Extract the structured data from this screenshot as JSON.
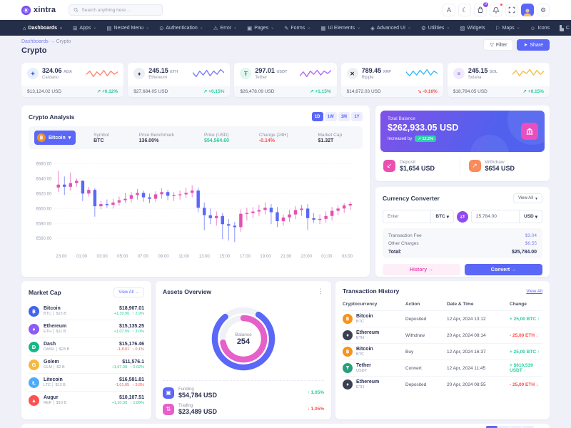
{
  "brand": {
    "name": "xintra"
  },
  "header": {
    "search_placeholder": "Search anything here ...",
    "cart_badge": "0",
    "icons": [
      "search-icon",
      "translate-icon",
      "moon-icon",
      "cart-icon",
      "bell-icon",
      "fullscreen-icon",
      "avatar",
      "gear-icon"
    ],
    "translate_glyph": "A",
    "moon_glyph": "☾",
    "gear_glyph": "⚙"
  },
  "nav": {
    "chevron": "⌄",
    "items": [
      {
        "label": "Dashboards",
        "glyph": "⌂",
        "icon": "home-icon",
        "chevron": true,
        "active": true
      },
      {
        "label": "Apps",
        "glyph": "⊞",
        "icon": "apps-grid-icon",
        "chevron": true,
        "active": false
      },
      {
        "label": "Nested Menu",
        "glyph": "▤",
        "icon": "nested-menu-icon",
        "chevron": true,
        "active": false
      },
      {
        "label": "Authentication",
        "glyph": "⊙",
        "icon": "lock-icon",
        "chevron": true,
        "active": false
      },
      {
        "label": "Error",
        "glyph": "⚠",
        "icon": "warning-icon",
        "chevron": true,
        "active": false
      },
      {
        "label": "Pages",
        "glyph": "▣",
        "icon": "pages-icon",
        "chevron": true,
        "active": false
      },
      {
        "label": "Forms",
        "glyph": "✎",
        "icon": "forms-icon",
        "chevron": true,
        "active": false
      },
      {
        "label": "Ui Elements",
        "glyph": "▦",
        "icon": "ui-elements-icon",
        "chevron": true,
        "active": false
      },
      {
        "label": "Advanced UI",
        "glyph": "◈",
        "icon": "advanced-ui-icon",
        "chevron": true,
        "active": false
      },
      {
        "label": "Utilities",
        "glyph": "⚙",
        "icon": "utilities-icon",
        "chevron": true,
        "active": false
      },
      {
        "label": "Widgets",
        "glyph": "▧",
        "icon": "widgets-icon",
        "chevron": false,
        "active": false
      },
      {
        "label": "Maps",
        "glyph": "⚐",
        "icon": "maps-icon",
        "chevron": true,
        "active": false
      },
      {
        "label": "Icons",
        "glyph": "☺",
        "icon": "icons-icon",
        "chevron": false,
        "active": false
      },
      {
        "label": "C",
        "glyph": "▙",
        "icon": "charts-icon",
        "chevron": false,
        "active": false
      }
    ],
    "scroll_arrow": "›"
  },
  "breadcrumb": {
    "parent": "Dashboards",
    "separator": "→",
    "current": "Crypto"
  },
  "page": {
    "title": "Crypto",
    "filter_label": "Filter",
    "filter_glyph": "▽",
    "share_label": "Share",
    "share_glyph": "➤"
  },
  "ticker_cards": [
    {
      "value": "324.06",
      "symbol": "ADA",
      "name": "Cardano",
      "price": "$13,124.02 USD",
      "change": "↗ +0.12%",
      "dir": "up",
      "icon_glyph": "✦",
      "icon_bg": "#e7effe",
      "icon_color": "#3468d1",
      "spark_color": "#fd8a75",
      "spark": [
        9,
        13,
        6,
        12,
        8,
        14,
        7,
        13,
        9,
        12
      ]
    },
    {
      "value": "245.15",
      "symbol": "ETH",
      "name": "Ethereum",
      "price": "$27,684.05 USD",
      "change": "↗ +0.15%",
      "dir": "up",
      "icon_glyph": "♦",
      "icon_bg": "#eceef4",
      "icon_color": "#343a4e",
      "spark_color": "#7b7ff5",
      "spark": [
        11,
        6,
        13,
        8,
        14,
        7,
        13,
        9,
        15,
        11
      ]
    },
    {
      "value": "297.01",
      "symbol": "USDT",
      "name": "Tether",
      "price": "$26,478.09 USD",
      "change": "↗ +1.15%",
      "dir": "up",
      "icon_glyph": "Ŧ",
      "icon_bg": "#e2f6f0",
      "icon_color": "#26a17b",
      "spark_color": "#b06af5",
      "spark": [
        7,
        12,
        6,
        13,
        9,
        14,
        8,
        13,
        10,
        14
      ]
    },
    {
      "value": "789.45",
      "symbol": "XRP",
      "name": "Ripple",
      "price": "$14,872.03 USD",
      "change": "↘ -0.16%",
      "dir": "down",
      "icon_glyph": "✕",
      "icon_bg": "#eef0f4",
      "icon_color": "#23292f",
      "spark_color": "#41b8f5",
      "spark": [
        12,
        7,
        13,
        8,
        14,
        9,
        15,
        8,
        13,
        10
      ]
    },
    {
      "value": "245.15",
      "symbol": "SOL",
      "name": "Solana",
      "price": "$18,784.05 USD",
      "change": "↗ +0.15%",
      "dir": "up",
      "icon_glyph": "≡",
      "icon_bg": "#f0eafd",
      "icon_color": "#7a4fd8",
      "spark_color": "#f5c04a",
      "spark": [
        9,
        14,
        7,
        13,
        10,
        15,
        8,
        14,
        9,
        13
      ]
    }
  ],
  "analysis": {
    "title": "Crypto Analysis",
    "ranges": [
      {
        "label": "1D",
        "active": true
      },
      {
        "label": "1W",
        "active": false
      },
      {
        "label": "1M",
        "active": false
      },
      {
        "label": "1Y",
        "active": false
      }
    ],
    "coin_label": "Bitcoin",
    "coin_glyph": "฿",
    "caret": "▾",
    "stats": [
      {
        "label": "Symbol",
        "value": "BTC",
        "color": ""
      },
      {
        "label": "Price Benchmark",
        "value": "136.00%",
        "color": ""
      },
      {
        "label": "Price (USD)",
        "value": "$54,564.60",
        "color": "#23ce9b"
      },
      {
        "label": "Change (24H)",
        "value": "-0.14%",
        "color": "#fb4e4e"
      },
      {
        "label": "Market Cap",
        "value": "$1.32T",
        "color": ""
      }
    ]
  },
  "chart_data": [
    {
      "type": "candlestick",
      "title": "Crypto Analysis (BTC 1D)",
      "ylabel": "Price (USD)",
      "ylim": [
        6548,
        6668
      ],
      "yticks": [
        "6660.00",
        "6640.00",
        "6620.00",
        "6600.00",
        "6580.00",
        "6560.00"
      ],
      "ytick_values": [
        6660,
        6640,
        6620,
        6600,
        6580,
        6560
      ],
      "xticks": [
        "23:00",
        "01:00",
        "03:00",
        "05:00",
        "07:00",
        "09:00",
        "11:00",
        "13:00",
        "15:00",
        "17:00",
        "19:00",
        "21:00",
        "23:00",
        "01:00",
        "03:00"
      ],
      "up_color": "#e351b2",
      "down_color": "#5b67f7",
      "grid": true,
      "candles_ohlc": [
        [
          6628,
          6650,
          6622,
          6632
        ],
        [
          6632,
          6643,
          6618,
          6629
        ],
        [
          6629,
          6648,
          6624,
          6634
        ],
        [
          6634,
          6640,
          6629,
          6637
        ],
        [
          6637,
          6638,
          6610,
          6620
        ],
        [
          6620,
          6629,
          6616,
          6625
        ],
        [
          6625,
          6627,
          6589,
          6603
        ],
        [
          6603,
          6610,
          6599,
          6606
        ],
        [
          6606,
          6612,
          6601,
          6605
        ],
        [
          6605,
          6613,
          6600,
          6608
        ],
        [
          6608,
          6616,
          6604,
          6611
        ],
        [
          6611,
          6621,
          6607,
          6613
        ],
        [
          6613,
          6622,
          6608,
          6618
        ],
        [
          6618,
          6626,
          6612,
          6621
        ],
        [
          6621,
          6624,
          6609,
          6615
        ],
        [
          6615,
          6620,
          6607,
          6613
        ],
        [
          6613,
          6623,
          6609,
          6619
        ],
        [
          6619,
          6627,
          6613,
          6622
        ],
        [
          6622,
          6625,
          6611,
          6617
        ],
        [
          6617,
          6622,
          6610,
          6618
        ],
        [
          6618,
          6624,
          6612,
          6619
        ],
        [
          6619,
          6628,
          6614,
          6621
        ],
        [
          6621,
          6631,
          6615,
          6624
        ],
        [
          6624,
          6628,
          6595,
          6601
        ],
        [
          6601,
          6608,
          6571,
          6591
        ],
        [
          6591,
          6600,
          6579,
          6587
        ],
        [
          6587,
          6596,
          6577,
          6590
        ],
        [
          6590,
          6594,
          6559,
          6579
        ],
        [
          6579,
          6586,
          6557,
          6577
        ],
        [
          6577,
          6582,
          6555,
          6575
        ],
        [
          6575,
          6599,
          6569,
          6593
        ],
        [
          6593,
          6601,
          6584,
          6594
        ],
        [
          6594,
          6602,
          6587,
          6596
        ],
        [
          6596,
          6605,
          6590,
          6598
        ],
        [
          6598,
          6608,
          6592,
          6601
        ],
        [
          6601,
          6606,
          6579,
          6595
        ],
        [
          6595,
          6602,
          6575,
          6583
        ],
        [
          6583,
          6592,
          6577,
          6588
        ],
        [
          6588,
          6598,
          6582,
          6592
        ],
        [
          6592,
          6603,
          6586,
          6598
        ],
        [
          6598,
          6605,
          6590,
          6600
        ],
        [
          6600,
          6606,
          6571,
          6587
        ],
        [
          6587,
          6594,
          6581,
          6585
        ],
        [
          6585,
          6592,
          6579,
          6586
        ],
        [
          6586,
          6596,
          6581,
          6590
        ],
        [
          6590,
          6602,
          6584,
          6597
        ],
        [
          6597,
          6604,
          6591,
          6600
        ],
        [
          6600,
          6607,
          6594,
          6604
        ],
        [
          6604,
          6609,
          6598,
          6606
        ]
      ]
    },
    {
      "type": "donut",
      "title": "Assets Overview",
      "center_label": "Balance",
      "center_value": "254",
      "series": [
        {
          "name": "Funding",
          "value": 80,
          "color": "#5b67f7"
        },
        {
          "name": "Trading",
          "value": 72,
          "color": "#e560c8"
        }
      ]
    }
  ],
  "balance": {
    "label": "Total Balance",
    "value": "$262,933.05 USD",
    "increased_label": "Increased by",
    "change_badge": "↗ 12.2%",
    "deposit": {
      "label": "Deposit",
      "value": "$1,654 USD",
      "glyph": "↙",
      "bg": "#ec4fb0"
    },
    "withdraw": {
      "label": "Withdraw",
      "value": "$654 USD",
      "glyph": "↗",
      "bg": "#f98b5c"
    }
  },
  "converter": {
    "title": "Currency Converter",
    "view_all": "View All",
    "caret": "▾",
    "from_placeholder": "Enter",
    "from_currency": "BTC",
    "swap_glyph": "⇄",
    "to_value": "25,784.00",
    "to_currency": "USD",
    "fee_rows": [
      {
        "label": "Transaction Fee",
        "value": "$3.04"
      },
      {
        "label": "Other Charges",
        "value": "$6.55"
      }
    ],
    "total_label": "Total:",
    "total_value": "$25,784.00",
    "history_label": "History →",
    "convert_label": "Convert →"
  },
  "market_cap": {
    "title": "Market Cap",
    "view_all": "View All →",
    "sep": "|",
    "rows": [
      {
        "name": "Bitcoin",
        "code": "BTC │ $15 B",
        "value": "$18,907.01",
        "delta": "+1,30.90",
        "pct": "↑ 2.9%",
        "dir": "up",
        "glyph": "฿",
        "bg": "#4263eb"
      },
      {
        "name": "Ethereum",
        "code": "ETH │ $11 B",
        "value": "$15,135.25",
        "delta": "+1,07.09",
        "pct": "↑ 3.0%",
        "dir": "up",
        "glyph": "♦",
        "bg": "#8b5cf6"
      },
      {
        "name": "Dash",
        "code": "DASH │ $23 B",
        "value": "$15,176.46",
        "delta": "-1,8.01",
        "pct": "↓ 0.1%",
        "dir": "down",
        "glyph": "Đ",
        "bg": "#12b886"
      },
      {
        "name": "Golem",
        "code": "GLM │ $2 B",
        "value": "$11,576.1",
        "delta": "+1,67.08",
        "pct": "↑ 0.02%",
        "dir": "up",
        "glyph": "G",
        "bg": "#f5b93e"
      },
      {
        "name": "Litecoin",
        "code": "LTC │ $13 B",
        "value": "$16,581.81",
        "delta": "-1,01.05",
        "pct": "↓ 3.8%",
        "dir": "down",
        "glyph": "Ł",
        "bg": "#4dabf7"
      },
      {
        "name": "Augur",
        "code": "REP │ $10 B",
        "value": "$10,107.51",
        "delta": "+1,10.30",
        "pct": "↑ 1.89%",
        "dir": "up",
        "glyph": "▲",
        "bg": "#fa5252"
      }
    ]
  },
  "assets": {
    "title": "Assets Overview",
    "kebab": "⋮",
    "center_label": "Balance",
    "center_value": "254",
    "items": [
      {
        "label": "Funding",
        "value": "$54,784 USD",
        "pct": "↑ 1.05%",
        "dir": "up",
        "glyph": "▣",
        "bg": "#5b67f7",
        "icon": "wallet-icon"
      },
      {
        "label": "Trading",
        "value": "$23,489 USD",
        "pct": "↓ 1.05%",
        "dir": "down",
        "glyph": "⇅",
        "bg": "#e560c8",
        "icon": "trade-arrows-icon"
      }
    ]
  },
  "transactions": {
    "title": "Transaction History",
    "view_all": "View All",
    "headers": [
      "Cryptocurrency",
      "Action",
      "Date & Time",
      "Change"
    ],
    "rows": [
      {
        "name": "Bitcoin",
        "code": "BTC",
        "action": "Deposited",
        "date": "12 Apr, 2024 13:12",
        "change": "+ 25,00 BTC ↑",
        "dir": "up",
        "glyph": "฿",
        "bg": "#f7931a"
      },
      {
        "name": "Ethereum",
        "code": "ETH",
        "action": "Withdraw",
        "date": "20 Apr, 2024 08:14",
        "change": "- 25,00 ETH ↓",
        "dir": "down",
        "glyph": "♦",
        "bg": "#3a3f51"
      },
      {
        "name": "Bitcoin",
        "code": "BTC",
        "action": "Buy",
        "date": "12 Apr, 2024 16:37",
        "change": "+ 25,00 BTC ↑",
        "dir": "up",
        "glyph": "฿",
        "bg": "#f7931a"
      },
      {
        "name": "Tether",
        "code": "USDT",
        "action": "Convert",
        "date": "12 Apr, 2024 11:45",
        "change": "+ $610,539 USDT ↑",
        "dir": "up",
        "glyph": "Ŧ",
        "bg": "#26a17b"
      },
      {
        "name": "Ethereum",
        "code": "ETH",
        "action": "Deposited",
        "date": "20 Apr, 2024 08:55",
        "change": "- 25,00 ETH ↓",
        "dir": "down",
        "glyph": "♦",
        "bg": "#3a3f51"
      }
    ]
  }
}
